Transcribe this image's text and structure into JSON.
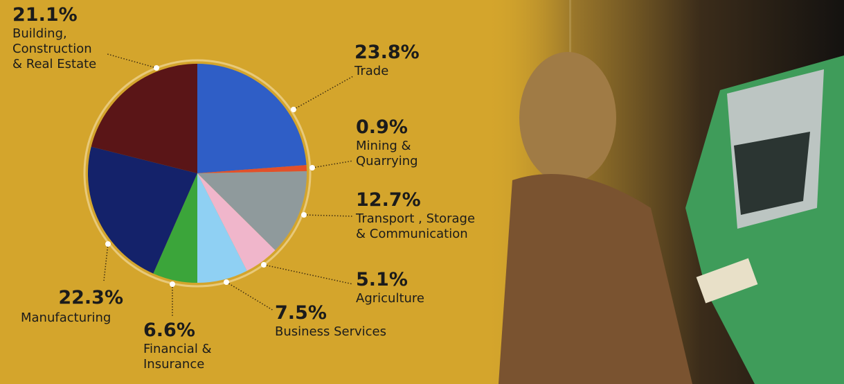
{
  "chart_data": {
    "type": "pie",
    "categories": [
      "Trade",
      "Mining &\nQuarrying",
      "Transport , Storage\n& Communication",
      "Agriculture",
      "Business Services",
      "Financial &\nInsurance",
      "Manufacturing",
      "Building,\nConstruction\n& Real Estate"
    ],
    "values": [
      23.8,
      0.9,
      12.7,
      5.1,
      7.5,
      6.6,
      22.3,
      21.1
    ],
    "value_labels": [
      "23.8%",
      "0.9%",
      "12.7%",
      "5.1%",
      "7.5%",
      "6.6%",
      "22.3%",
      "21.1%"
    ],
    "colors": [
      "#2f5ec6",
      "#e2502a",
      "#8f9a9c",
      "#f0b6cb",
      "#8fd0f3",
      "#3ba53a",
      "#14226a",
      "#5a1517"
    ]
  }
}
